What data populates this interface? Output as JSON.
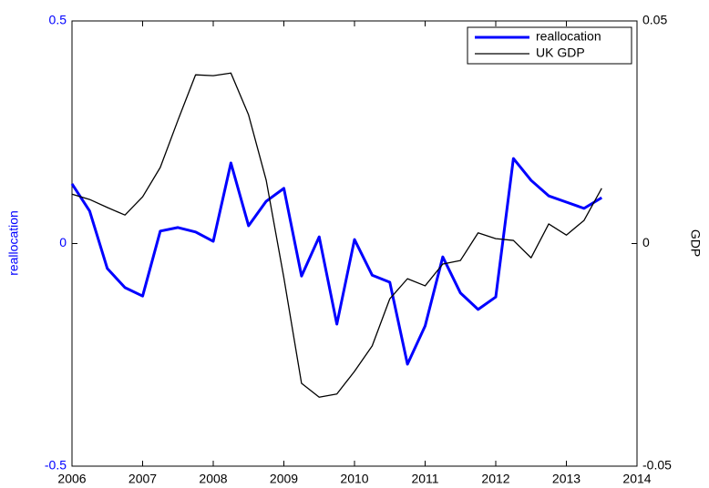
{
  "chart_data": {
    "type": "line",
    "ylabel": "reallocation",
    "y2label": "GDP",
    "x": [
      2006,
      2006.25,
      2006.5,
      2006.75,
      2007,
      2007.25,
      2007.5,
      2007.75,
      2008,
      2008.25,
      2008.5,
      2008.75,
      2009,
      2009.25,
      2009.5,
      2009.75,
      2010,
      2010.25,
      2010.5,
      2010.75,
      2011,
      2011.25,
      2011.5,
      2011.75,
      2012,
      2012.25,
      2012.5,
      2012.75,
      2013,
      2013.25,
      2013.5
    ],
    "series": [
      {
        "name": "reallocation",
        "color": "#0000ff",
        "values": [
          0.134,
          0.073,
          -0.056,
          -0.099,
          -0.118,
          0.028,
          0.036,
          0.026,
          0.005,
          0.181,
          0.04,
          0.095,
          0.124,
          -0.073,
          0.015,
          -0.181,
          0.009,
          -0.071,
          -0.087,
          -0.271,
          -0.185,
          -0.03,
          -0.111,
          -0.148,
          -0.12,
          0.191,
          0.142,
          0.107,
          0.093,
          0.079,
          0.103
        ]
      },
      {
        "name": "UK GDP",
        "color": "#000000",
        "axis": "y2",
        "values": [
          0.0111,
          0.0099,
          0.0081,
          0.0064,
          0.0105,
          0.0171,
          0.0277,
          0.0379,
          0.0377,
          0.0383,
          0.0289,
          0.0142,
          -0.0077,
          -0.0314,
          -0.0345,
          -0.0338,
          -0.0287,
          -0.023,
          -0.0124,
          -0.0079,
          -0.0095,
          -0.0046,
          -0.0038,
          0.0024,
          0.0011,
          0.0007,
          -0.0032,
          0.0044,
          0.0019,
          0.0052,
          0.0124
        ]
      }
    ],
    "xlim": [
      2006,
      2014
    ],
    "xticks": [
      2006,
      2007,
      2008,
      2009,
      2010,
      2011,
      2012,
      2013,
      2014
    ],
    "ylim": [
      -0.5,
      0.5
    ],
    "yticks": [
      -0.5,
      0,
      0.5
    ],
    "y2lim": [
      -0.05,
      0.05
    ],
    "y2ticks": [
      -0.05,
      0,
      0.05
    ],
    "legend": "top-right"
  }
}
